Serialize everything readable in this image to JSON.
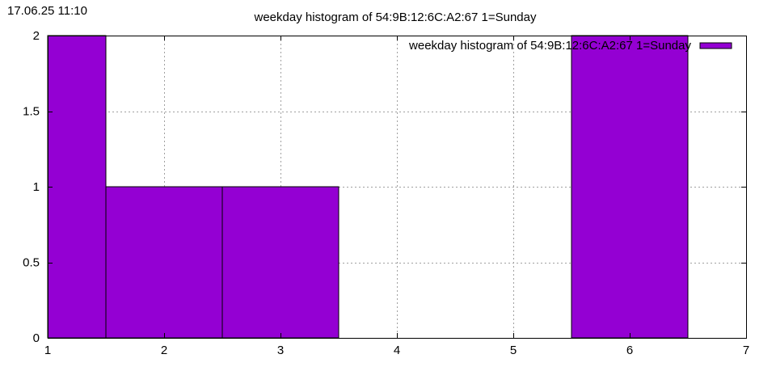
{
  "timestamp": "17.06.25 11:10",
  "chart_data": {
    "type": "bar",
    "title": "weekday histogram of 54:9B:12:6C:A2:67 1=Sunday",
    "xlabel": "",
    "ylabel": "",
    "xlim": [
      1,
      7
    ],
    "ylim": [
      0,
      2
    ],
    "xticks": [
      "1",
      "2",
      "3",
      "4",
      "5",
      "6",
      "7"
    ],
    "yticks": [
      "0",
      "0.5",
      "1",
      "1.5",
      "2"
    ],
    "grid": true,
    "legend_position": "top-right",
    "bar_width": 1,
    "bar_color": "#9400d3",
    "series": [
      {
        "name": "weekday histogram of 54:9B:12:6C:A2:67 1=Sunday",
        "x": [
          1,
          2,
          3,
          4,
          5,
          6,
          7
        ],
        "values": [
          2,
          1,
          1,
          0,
          0,
          2,
          0
        ]
      }
    ]
  }
}
